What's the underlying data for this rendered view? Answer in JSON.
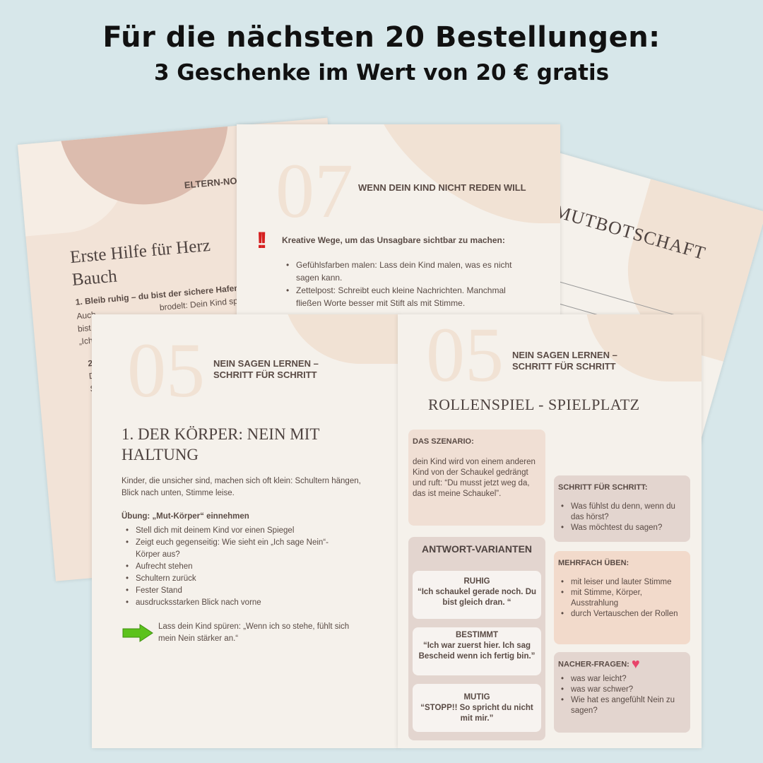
{
  "headline": {
    "line1": "Für die nächsten 20 Bestellungen:",
    "line2": "3 Geschenke im Wert von 20 € gratis"
  },
  "page_eltern": {
    "header": "ELTERN-NOT",
    "title_1": "Erste Hilfe für Herz",
    "title_2": "Bauch",
    "step1": "1. Bleib ruhig – du bist der sichere Hafen",
    "line_a": "brodelt: Dein Kind sp",
    "frag": [
      "Auch",
      "bist.",
      "„Ich",
      "2. W",
      "Du",
      "Sa",
      "S",
      "„W"
    ]
  },
  "page_mut": {
    "title": "MUTBOTSCHAFT"
  },
  "page_07": {
    "number": "07",
    "title": "WENN DEIN KIND NICHT REDEN WILL",
    "lead": "Kreative Wege, um das Unsagbare sichtbar zu machen:",
    "bullets": [
      "Gefühlsfarben malen: Lass dein Kind malen, was es nicht sagen kann.",
      "Zettelpost: Schreibt euch kleine Nachrichten. Manchmal fließen Worte besser mit Stift als mit Stimme."
    ]
  },
  "page_05a": {
    "number": "05",
    "header": "NEIN SAGEN LERNEN – SCHRITT FÜR SCHRITT",
    "title": "1. DER KÖRPER: NEIN MIT HALTUNG",
    "intro": "Kinder, die unsicher sind, machen sich oft klein: Schultern hängen, Blick nach unten, Stimme leise.",
    "exercise_title": "Übung: „Mut-Körper“ einnehmen",
    "bullets": [
      "Stell dich mit deinem Kind vor einen Spiegel",
      "Zeigt euch gegenseitig: Wie sieht ein „Ich sage Nein“-Körper aus?",
      "Aufrecht stehen",
      "Schultern zurück",
      "Fester Stand",
      "ausdrucksstarken Blick nach vorne"
    ],
    "tip": "Lass dein Kind spüren: „Wenn ich so stehe, fühlt sich mein Nein stärker an.“",
    "arrow_color": "#5cc21c"
  },
  "page_05b": {
    "number": "05",
    "header": "NEIN SAGEN LERNEN – SCHRITT FÜR SCHRITT",
    "title": "ROLLENSPIEL - SPIELPLATZ",
    "scenario": {
      "title": "DAS SZENARIO:",
      "text": "dein Kind wird von einem anderen Kind von der Schaukel gedrängt und ruft: “Du musst jetzt weg da, das ist meine Schaukel”."
    },
    "answers": {
      "title": "ANTWORT-VARIANTEN",
      "items": [
        {
          "label": "RUHIG",
          "quote": "“Ich schaukel gerade noch. Du bist gleich dran. “"
        },
        {
          "label": "BESTIMMT",
          "quote": "“Ich war zuerst hier. Ich sag Bescheid wenn ich fertig bin.”"
        },
        {
          "label": "MUTIG",
          "quote": "“STOPP!! So spricht du nicht mit mir.”"
        }
      ]
    },
    "steps": {
      "title": "SCHRITT FÜR SCHRITT:",
      "bullets": [
        "Was fühlst du denn, wenn du das hörst?",
        "Was möchtest du sagen?"
      ]
    },
    "practice": {
      "title": "MEHRFACH ÜBEN:",
      "bullets": [
        "mit leiser und lauter Stimme",
        "mit Stimme, Körper, Ausstrahlung",
        "durch Vertauschen der Rollen"
      ]
    },
    "followup": {
      "title": "NACHER-FRAGEN:",
      "bullets": [
        "was war leicht?",
        "was war schwer?",
        "Wie hat es angefühlt Nein zu sagen?"
      ]
    }
  }
}
